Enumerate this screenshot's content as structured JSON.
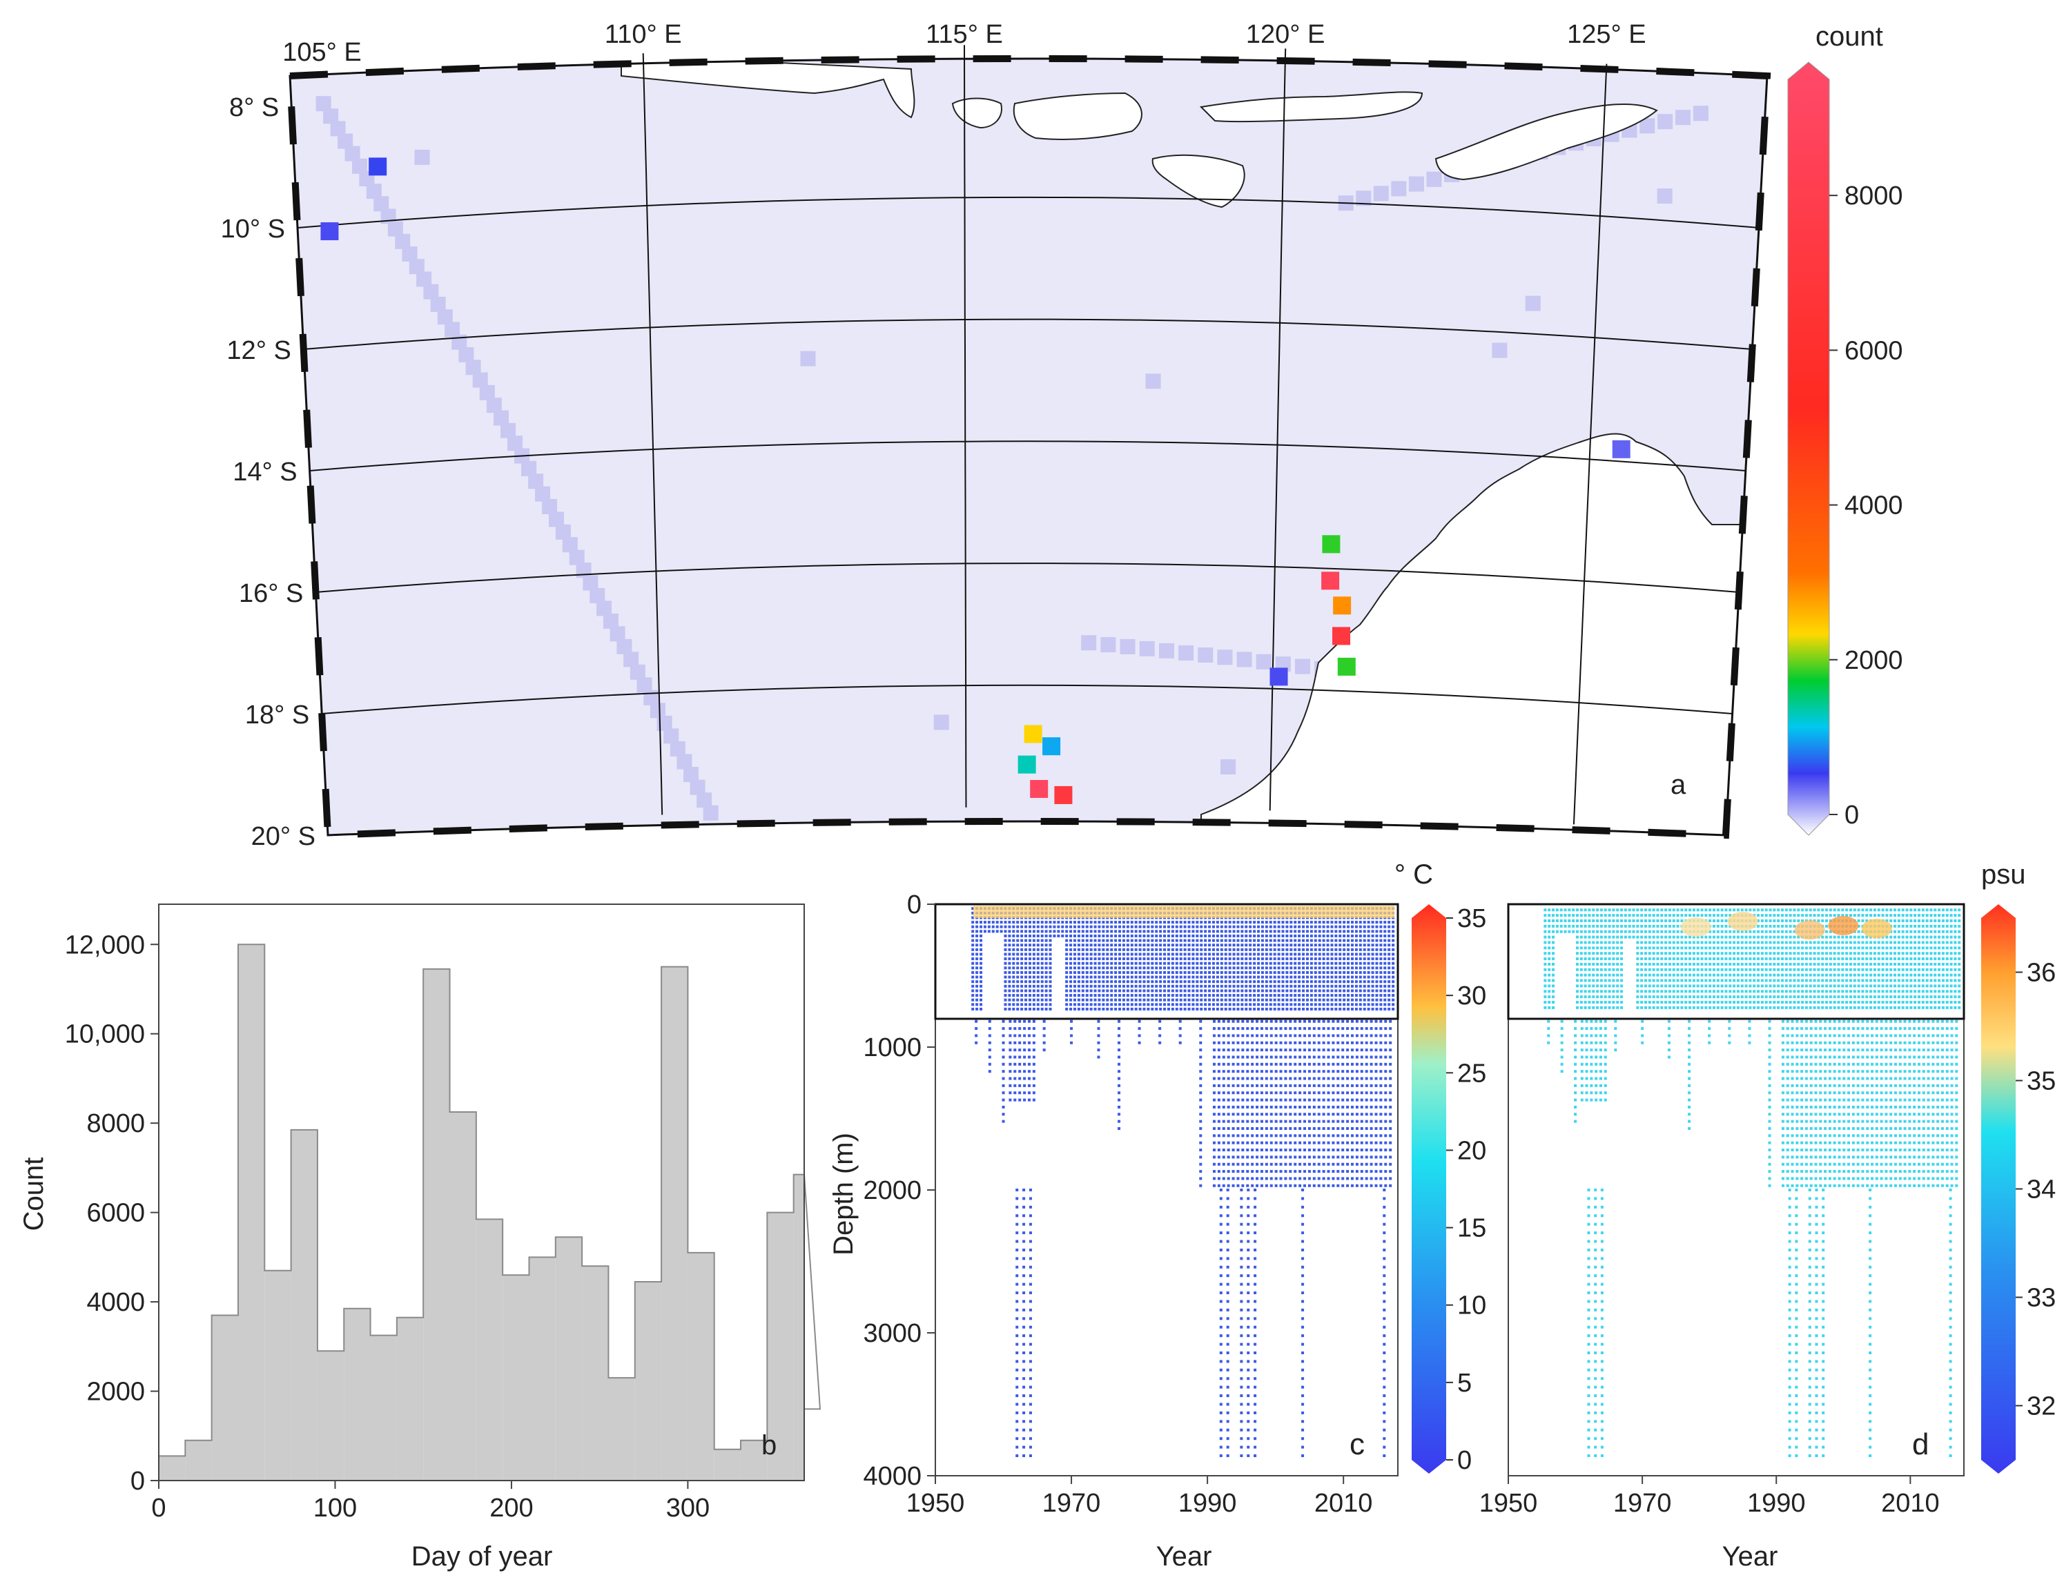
{
  "colors": {
    "ocean_bg": "#e8e8f8",
    "sparse": "#c8c8f2",
    "hist_fill": "#cccccc",
    "hist_edge": "#8a8a8a",
    "temp_dot": "#3c5ae6",
    "sal_dot": "#3fd6ec"
  },
  "panel_a": {
    "letter": "a",
    "lon_labels": [
      "105° E",
      "110° E",
      "115° E",
      "120° E",
      "125° E"
    ],
    "lat_labels": [
      "8° S",
      "10° S",
      "12° S",
      "14° S",
      "16° S",
      "18° S",
      "20° S"
    ],
    "colorbar": {
      "title": "count",
      "ticks": [
        "0",
        "2000",
        "4000",
        "6000",
        "8000"
      ],
      "tick_values": [
        0,
        2000,
        4000,
        6000,
        8000
      ],
      "range": [
        0,
        9500
      ]
    }
  },
  "panel_b": {
    "letter": "b",
    "xlabel": "Day of year",
    "ylabel": "Count",
    "xticks": [
      "0",
      "100",
      "200",
      "300"
    ],
    "yticks": [
      "0",
      "2000",
      "4000",
      "6000",
      "8000",
      "10,000",
      "12,000"
    ]
  },
  "panel_c": {
    "letter": "c",
    "unit": "° C",
    "xlabel": "Year",
    "ylabel": "Depth (m)",
    "xticks": [
      "1950",
      "1970",
      "1990",
      "2010"
    ],
    "yticks": [
      "0",
      "1000",
      "2000",
      "3000",
      "4000"
    ],
    "cbar_ticks": [
      "0",
      "5",
      "10",
      "15",
      "20",
      "25",
      "30",
      "35"
    ]
  },
  "panel_d": {
    "letter": "d",
    "unit": "psu",
    "xlabel": "Year",
    "xticks": [
      "1950",
      "1970",
      "1990",
      "2010"
    ],
    "cbar_ticks": [
      "32",
      "33",
      "34",
      "35",
      "36"
    ]
  },
  "chart_data": [
    {
      "type": "heatmap",
      "panel": "a",
      "lon_range": [
        104.5,
        127.5
      ],
      "lat_range": [
        -20,
        -7.5
      ],
      "hotspots": [
        {
          "lon": 120.9,
          "lat": -15.6,
          "count": 2000
        },
        {
          "lon": 120.9,
          "lat": -16.2,
          "count": 8500
        },
        {
          "lon": 121.1,
          "lat": -16.6,
          "count": 3000
        },
        {
          "lon": 121.1,
          "lat": -17.1,
          "count": 7000
        },
        {
          "lon": 121.2,
          "lat": -17.6,
          "count": 2000
        },
        {
          "lon": 116.0,
          "lat": -19.3,
          "count": 1500
        },
        {
          "lon": 116.2,
          "lat": -19.7,
          "count": 9000
        },
        {
          "lon": 116.6,
          "lat": -19.8,
          "count": 7000
        },
        {
          "lon": 116.1,
          "lat": -18.8,
          "count": 2500
        },
        {
          "lon": 116.4,
          "lat": -19.0,
          "count": 1200
        },
        {
          "lon": 105.8,
          "lat": -9.1,
          "count": 800
        },
        {
          "lon": 105.0,
          "lat": -10.1,
          "count": 700
        },
        {
          "lon": 125.5,
          "lat": -13.8,
          "count": 600
        },
        {
          "lon": 120.1,
          "lat": -17.8,
          "count": 700
        }
      ]
    },
    {
      "type": "bar",
      "panel": "b",
      "bin_width": 15,
      "x_start": 0,
      "values": [
        550,
        900,
        3700,
        12000,
        4700,
        7850,
        2900,
        3850,
        3250,
        3650,
        11450,
        8250,
        5850,
        4600,
        5000,
        5450,
        4800,
        2300,
        4450,
        11500,
        5100,
        700,
        900,
        6000,
        6850,
        1600
      ],
      "xlim": [
        0,
        366
      ],
      "ylim": [
        0,
        12900
      ],
      "ytick_values": [
        0,
        2000,
        4000,
        6000,
        8000,
        10000,
        12000
      ],
      "xtick_values": [
        0,
        100,
        200,
        300
      ]
    },
    {
      "type": "scatter",
      "panel": "c",
      "variable": "temperature",
      "xlim": [
        1950,
        2018
      ],
      "ylim": [
        4000,
        0
      ],
      "box_depth": 800,
      "deep_years": [
        1962,
        1963,
        1964,
        1992,
        1993,
        1995,
        1996,
        1997,
        2004,
        2016
      ],
      "max_depth_m": 3900
    },
    {
      "type": "scatter",
      "panel": "d",
      "variable": "salinity",
      "xlim": [
        1950,
        2018
      ],
      "ylim": [
        4000,
        0
      ],
      "box_depth": 800,
      "deep_years": [
        1962,
        1963,
        1964,
        1992,
        1993,
        1995,
        1996,
        1997,
        2004,
        2016
      ],
      "max_depth_m": 3900
    }
  ]
}
